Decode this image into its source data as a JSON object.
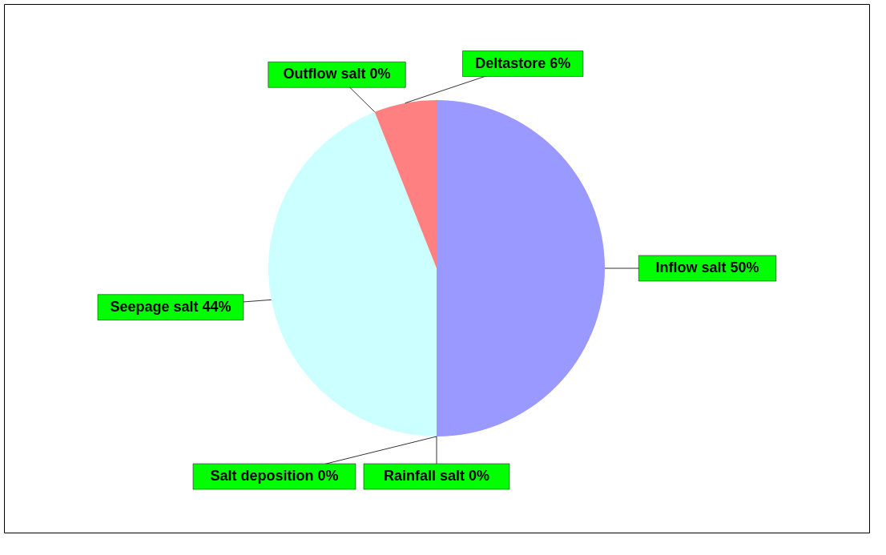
{
  "chart_data": {
    "type": "pie",
    "categories": [
      "Inflow salt",
      "Rainfall salt",
      "Salt deposition",
      "Seepage salt",
      "Outflow salt",
      "Deltastore"
    ],
    "values": [
      50,
      0,
      0,
      44,
      0,
      6
    ],
    "value_labels": [
      "50%",
      "0%",
      "0%",
      "44%",
      "0%",
      "6%"
    ],
    "colors": [
      "#9999ff",
      "#993366",
      "#ffffcc",
      "#ccffff",
      "#330033",
      "#ff8080"
    ],
    "legend": false
  }
}
